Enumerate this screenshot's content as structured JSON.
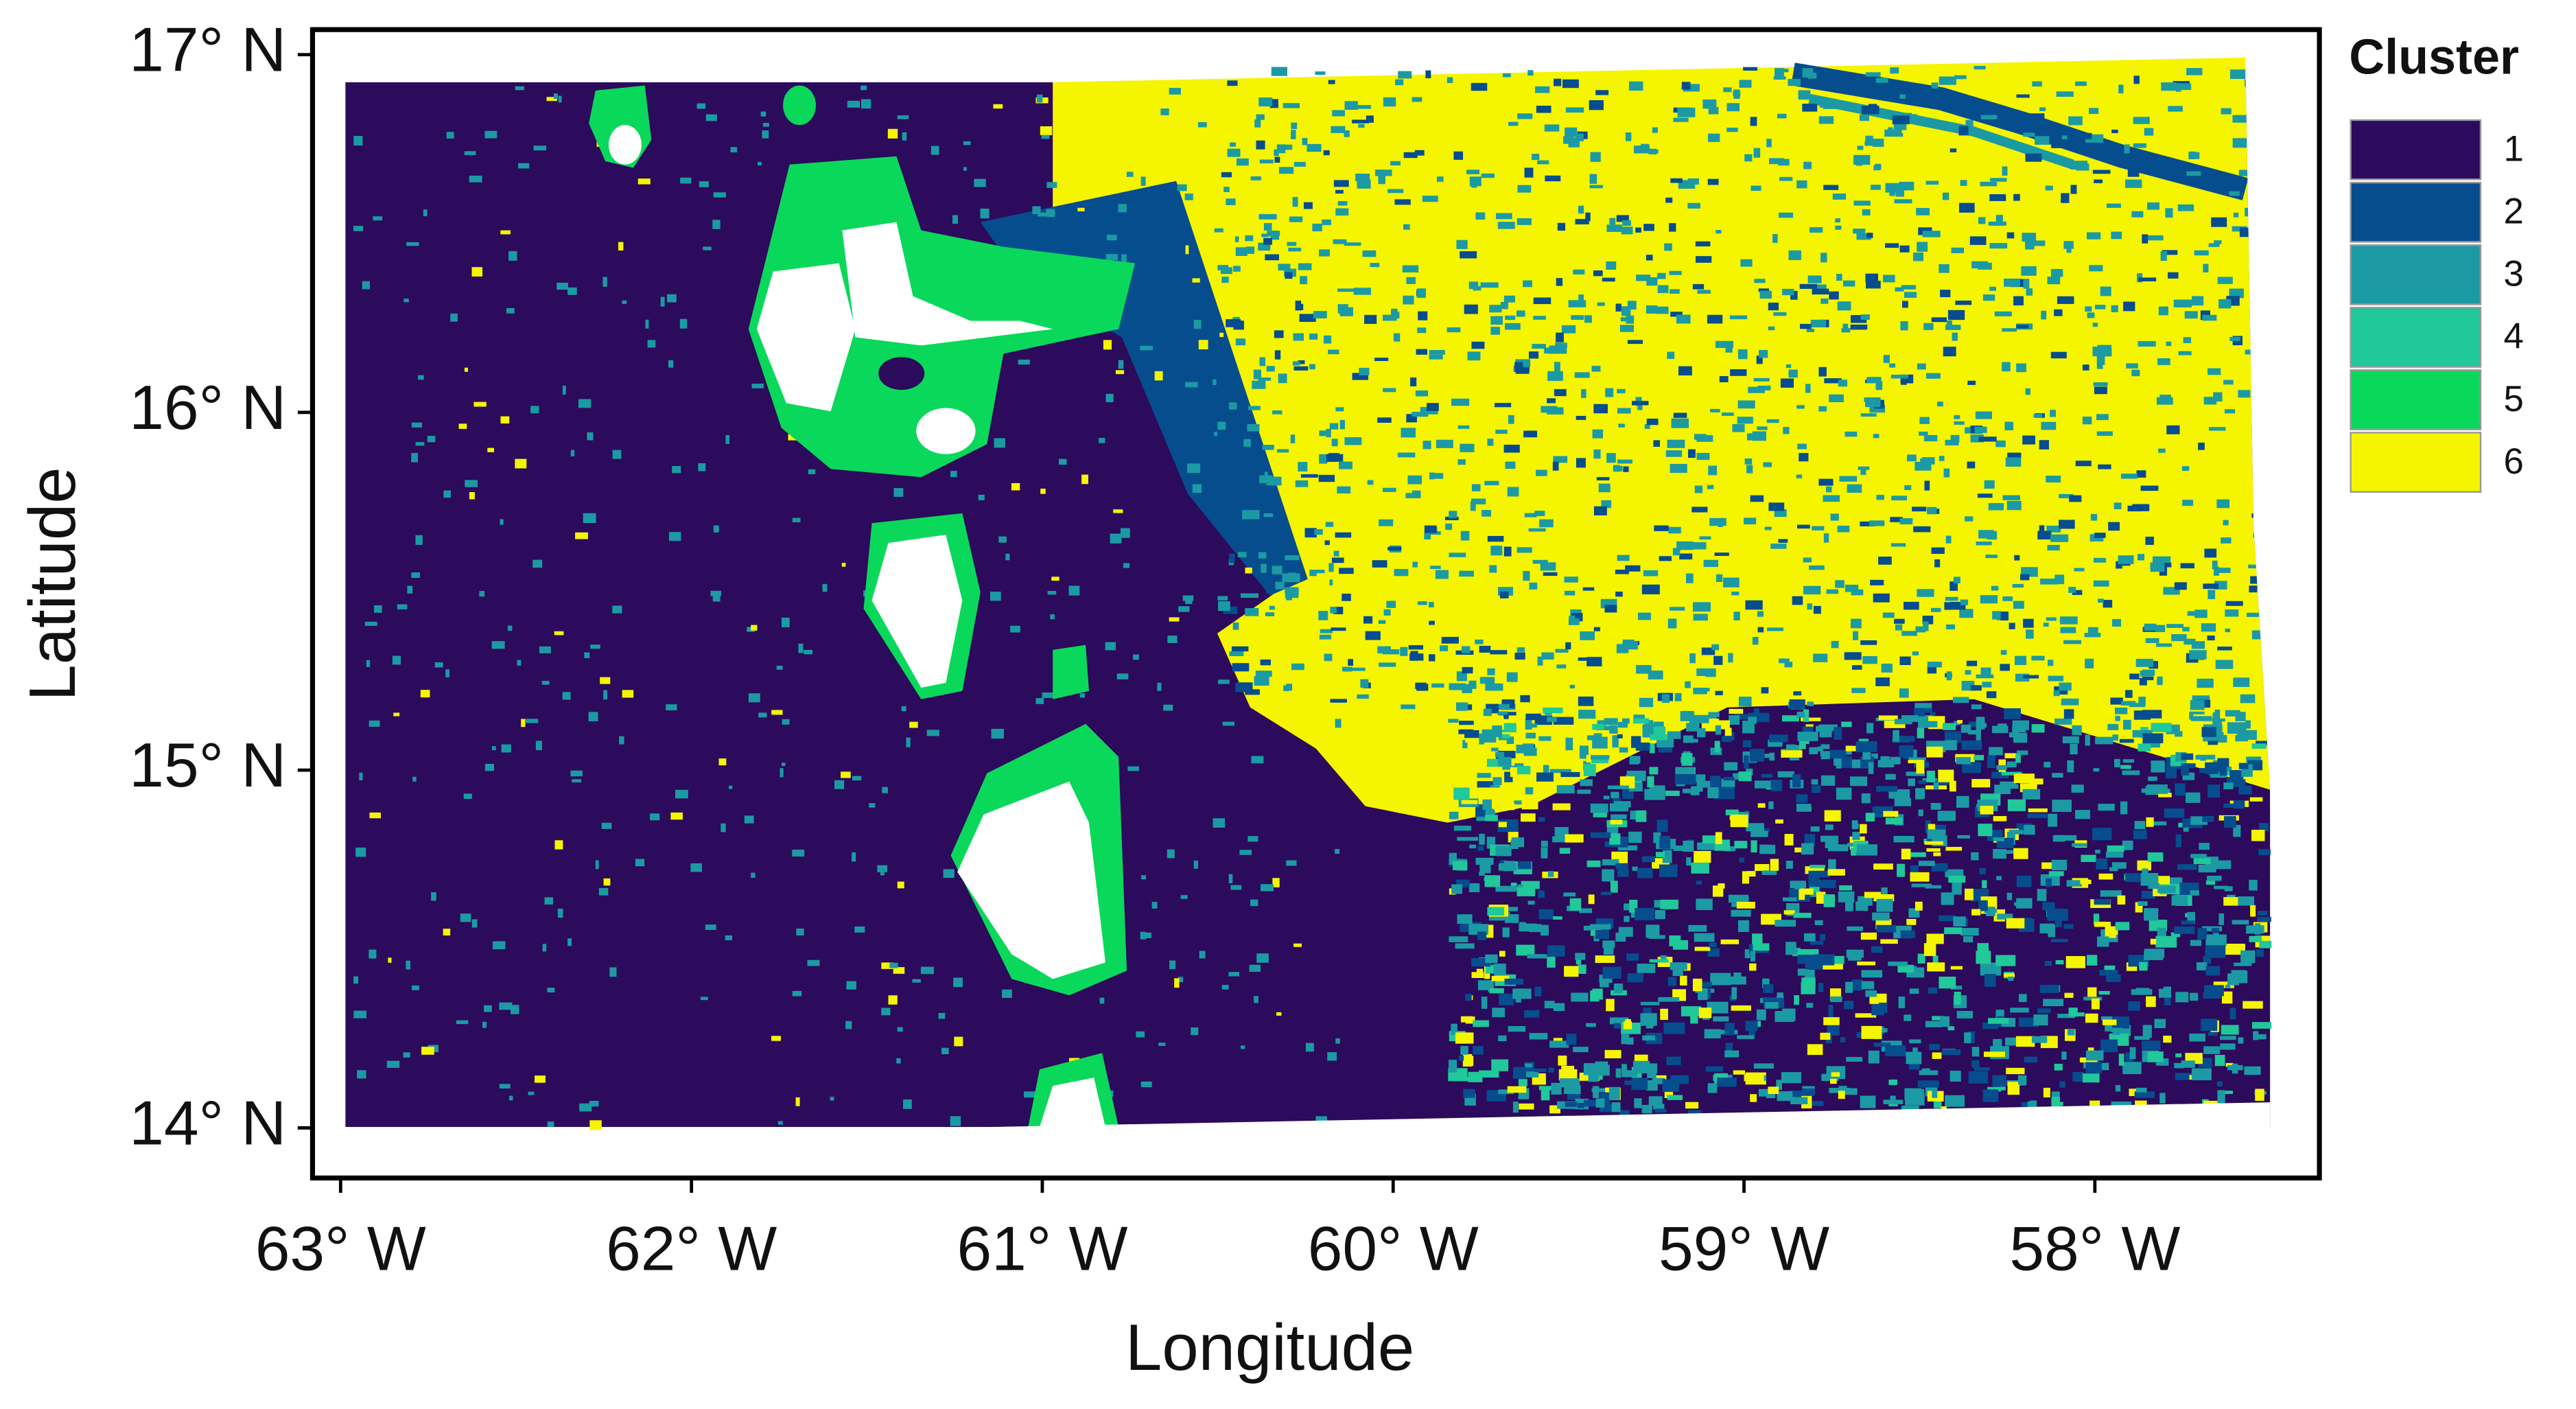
{
  "chart_data": {
    "type": "raster",
    "x_label": "Longitude",
    "y_label": "Latitude",
    "xlim": [
      -63.08,
      -57.36
    ],
    "ylim": [
      13.86,
      17.07
    ],
    "xticks": [
      {
        "value": -63,
        "label": "63° W"
      },
      {
        "value": -62,
        "label": "62° W"
      },
      {
        "value": -61,
        "label": "61° W"
      },
      {
        "value": -60,
        "label": "60° W"
      },
      {
        "value": -59,
        "label": "59° W"
      },
      {
        "value": -58,
        "label": "58° W"
      }
    ],
    "yticks": [
      {
        "value": 14,
        "label": "14° N"
      },
      {
        "value": 15,
        "label": "15° N"
      },
      {
        "value": 16,
        "label": "16° N"
      },
      {
        "value": 17,
        "label": "17° N"
      }
    ],
    "legend": {
      "title": "Cluster",
      "position": "right",
      "categories": [
        "1",
        "2",
        "3",
        "4",
        "5",
        "6"
      ],
      "colors": [
        "#2c0a5c",
        "#064d8e",
        "#1b9aa4",
        "#20c89a",
        "#0ad85a",
        "#f5f500"
      ]
    }
  }
}
